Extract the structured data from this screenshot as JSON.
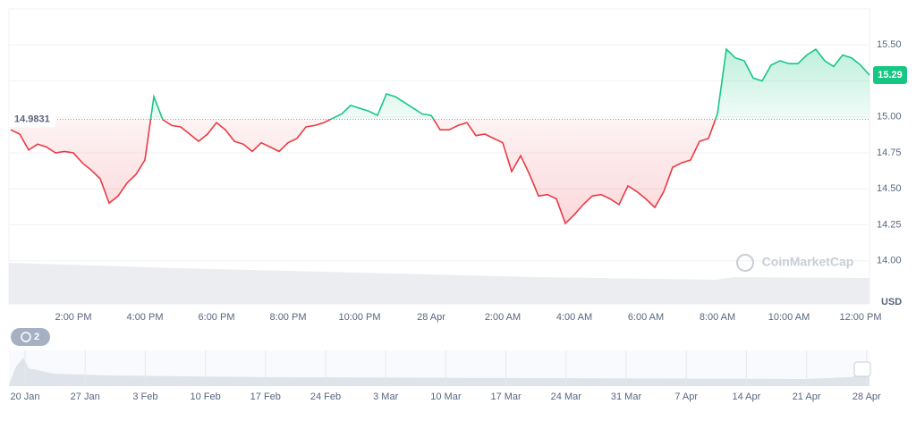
{
  "chart_data": {
    "type": "line",
    "categories": [
      null,
      null,
      null,
      null,
      null,
      null,
      null,
      "2:00 PM",
      null,
      null,
      null,
      null,
      null,
      null,
      null,
      "4:00 PM",
      null,
      null,
      null,
      null,
      null,
      null,
      null,
      "6:00 PM",
      null,
      null,
      null,
      null,
      null,
      null,
      null,
      "8:00 PM",
      null,
      null,
      null,
      null,
      null,
      null,
      null,
      "10:00 PM",
      null,
      null,
      null,
      null,
      null,
      null,
      null,
      "28 Apr",
      null,
      null,
      null,
      null,
      null,
      null,
      null,
      "2:00 AM",
      null,
      null,
      null,
      null,
      null,
      null,
      null,
      "4:00 AM",
      null,
      null,
      null,
      null,
      null,
      null,
      null,
      "6:00 AM",
      null,
      null,
      null,
      null,
      null,
      null,
      null,
      "8:00 AM",
      null,
      null,
      null,
      null,
      null,
      null,
      null,
      "10:00 AM",
      null,
      null,
      null,
      null,
      null,
      null,
      null,
      "12:00 PM",
      null
    ],
    "values": [
      14.91,
      14.88,
      14.77,
      14.81,
      14.79,
      14.75,
      14.76,
      14.75,
      14.68,
      14.63,
      14.57,
      14.4,
      14.45,
      14.54,
      14.6,
      14.7,
      15.14,
      14.98,
      14.94,
      14.93,
      14.88,
      14.83,
      14.88,
      14.96,
      14.91,
      14.83,
      14.81,
      14.76,
      14.82,
      14.79,
      14.76,
      14.82,
      14.85,
      14.93,
      14.94,
      14.96,
      14.99,
      15.02,
      15.08,
      15.06,
      15.04,
      15.01,
      15.16,
      15.14,
      15.1,
      15.06,
      15.02,
      15.01,
      14.91,
      14.91,
      14.94,
      14.96,
      14.87,
      14.88,
      14.85,
      14.82,
      14.62,
      14.73,
      14.6,
      14.45,
      14.46,
      14.43,
      14.26,
      14.32,
      14.39,
      14.45,
      14.46,
      14.43,
      14.39,
      14.52,
      14.48,
      14.43,
      14.37,
      14.48,
      14.65,
      14.68,
      14.7,
      14.83,
      14.85,
      15.02,
      15.47,
      15.41,
      15.39,
      15.27,
      15.25,
      15.36,
      15.39,
      15.37,
      15.37,
      15.43,
      15.47,
      15.39,
      15.35,
      15.43,
      15.41,
      15.36,
      15.29
    ],
    "up_color": "#16c784",
    "down_color": "#ea3943",
    "baseline": 14.9831,
    "last_price": 15.29,
    "ylim": [
      13.7,
      15.75
    ],
    "yticks": [
      {
        "value": 14.0,
        "label": "14.00"
      },
      {
        "value": 14.25,
        "label": "14.25"
      },
      {
        "value": 14.5,
        "label": "14.50"
      },
      {
        "value": 14.75,
        "label": "14.75"
      },
      {
        "value": 15.0,
        "label": "15.00"
      },
      {
        "value": 15.25,
        "label": "15.25"
      },
      {
        "value": 15.5,
        "label": "15.50"
      }
    ],
    "y_axis_label": "USD",
    "grid": true,
    "watermark": "CoinMarketCap",
    "badge": "2",
    "navigator_labels": [
      "20 Jan",
      "27 Jan",
      "3 Feb",
      "10 Feb",
      "17 Feb",
      "24 Feb",
      "3 Mar",
      "10 Mar",
      "17 Mar",
      "24 Mar",
      "31 Mar",
      "7 Apr",
      "14 Apr",
      "21 Apr",
      "28 Apr"
    ]
  }
}
